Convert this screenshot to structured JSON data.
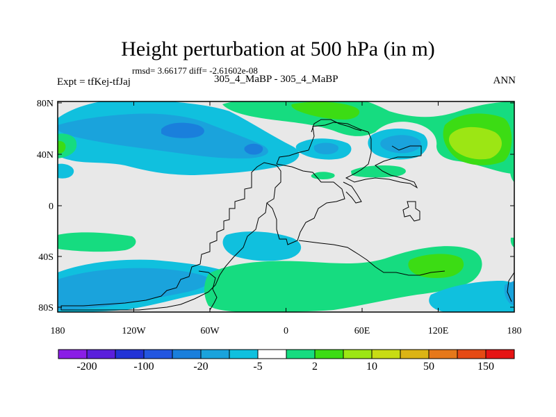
{
  "title": "Height perturbation at 500 hPa (in m)",
  "stats_text": "rmsd= 3.66177 diff= -2.61602e-08",
  "left_label": "Expt = tfKej-tfJaj",
  "center_label": "305_4_MaBP - 305_4_MaBP",
  "right_label": "ANN",
  "map": {
    "lon_ticks": [
      "180",
      "120W",
      "60W",
      "0",
      "60E",
      "120E",
      "180"
    ],
    "lat_ticks": [
      "80N",
      "40N",
      "0",
      "40S",
      "80S"
    ],
    "background_color": "#e8e8e8"
  },
  "colorbar": {
    "colors": [
      "#8a1ee6",
      "#5a1fdc",
      "#2233d6",
      "#2356e0",
      "#1a7fdc",
      "#1aa3dc",
      "#10c0de",
      "#ffffff",
      "#16dc80",
      "#3cdc14",
      "#9ce614",
      "#c8dc14",
      "#dcb414",
      "#e6781a",
      "#e64a14",
      "#e61414"
    ],
    "labels": [
      "-200",
      "-100",
      "-20",
      "-5",
      "2",
      "10",
      "50",
      "150"
    ]
  }
}
